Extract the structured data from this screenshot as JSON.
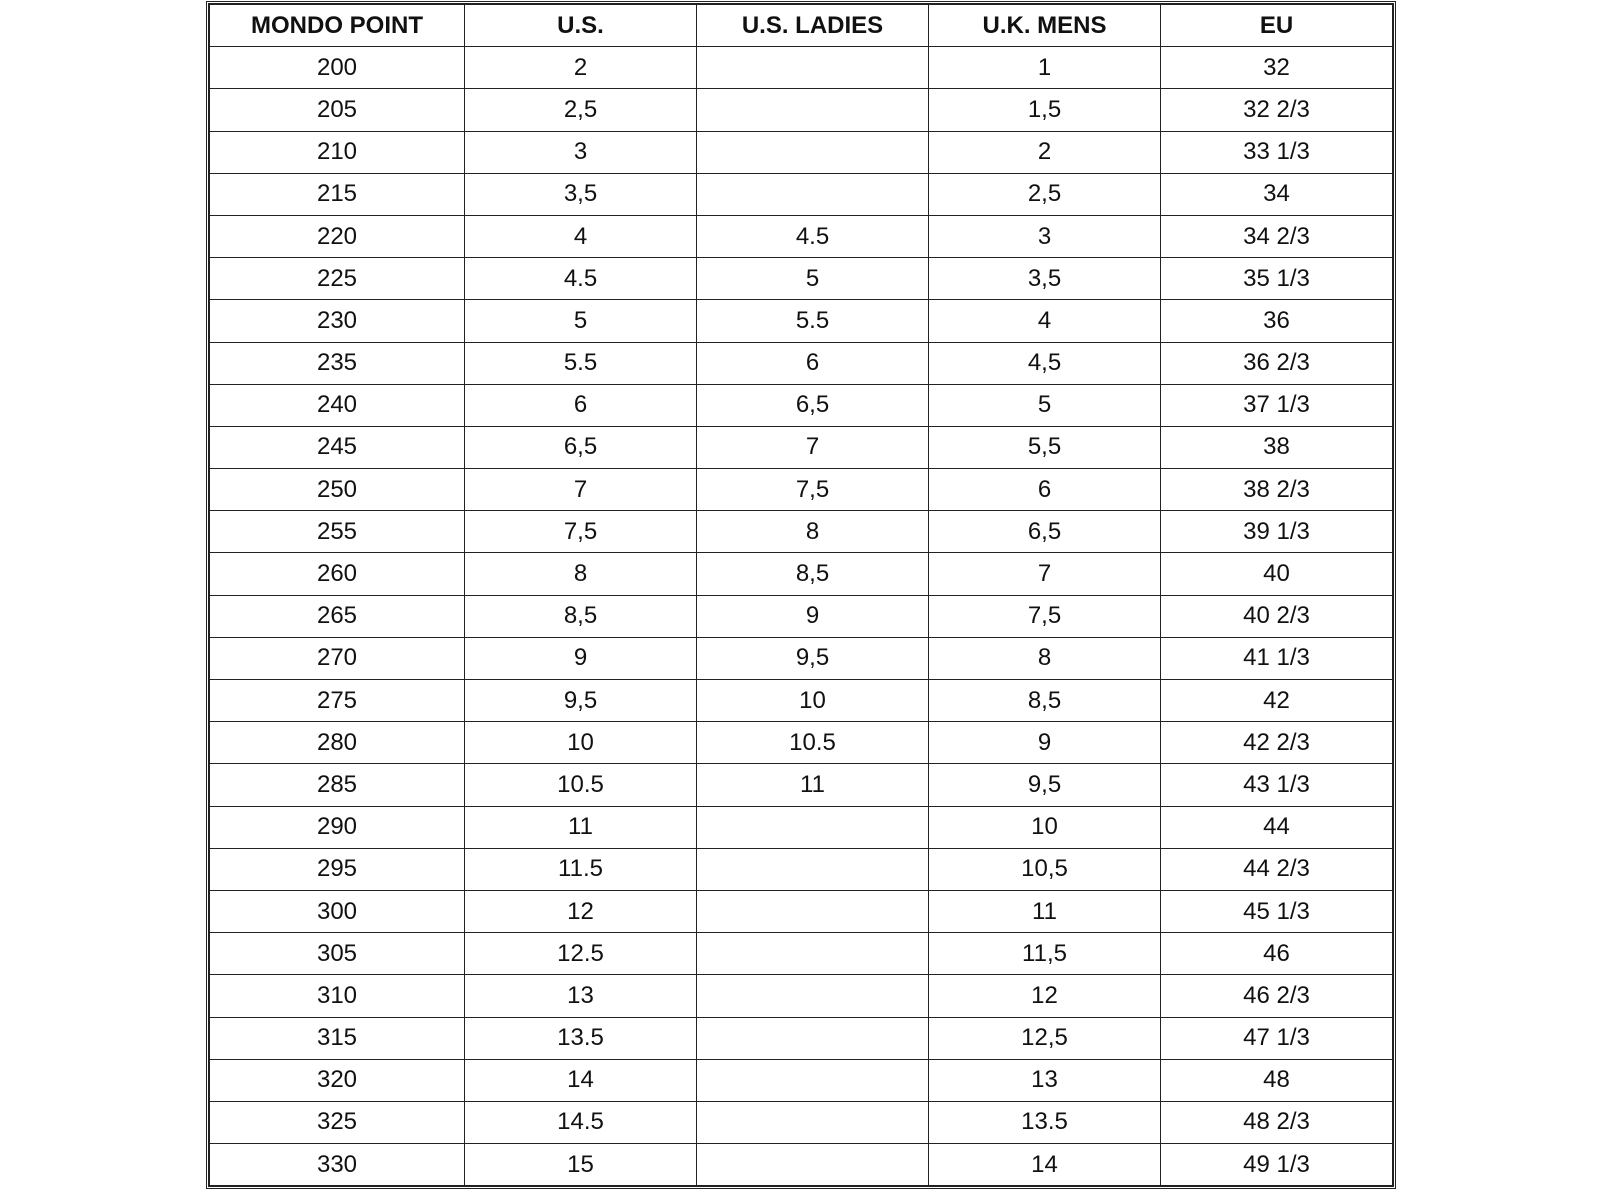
{
  "table": {
    "header": [
      "MONDO POINT",
      "U.S.",
      "U.S. LADIES",
      "U.K. MENS",
      "EU"
    ],
    "rows": [
      [
        "200",
        "2",
        null,
        "1",
        "32"
      ],
      [
        "205",
        "2,5",
        null,
        "1,5",
        "32 2/3"
      ],
      [
        "210",
        "3",
        null,
        "2",
        "33 1/3"
      ],
      [
        "215",
        "3,5",
        null,
        "2,5",
        "34"
      ],
      [
        "220",
        "4",
        "4.5",
        "3",
        "34 2/3"
      ],
      [
        "225",
        "4.5",
        "5",
        "3,5",
        "35 1/3"
      ],
      [
        "230",
        "5",
        "5.5",
        "4",
        "36"
      ],
      [
        "235",
        "5.5",
        "6",
        "4,5",
        "36 2/3"
      ],
      [
        "240",
        "6",
        "6,5",
        "5",
        "37 1/3"
      ],
      [
        "245",
        "6,5",
        "7",
        "5,5",
        "38"
      ],
      [
        "250",
        "7",
        "7,5",
        "6",
        "38 2/3"
      ],
      [
        "255",
        "7,5",
        "8",
        "6,5",
        "39 1/3"
      ],
      [
        "260",
        "8",
        "8,5",
        "7",
        "40"
      ],
      [
        "265",
        "8,5",
        "9",
        "7,5",
        "40 2/3"
      ],
      [
        "270",
        "9",
        "9,5",
        "8",
        "41 1/3"
      ],
      [
        "275",
        "9,5",
        "10",
        "8,5",
        "42"
      ],
      [
        "280",
        "10",
        "10.5",
        "9",
        "42 2/3"
      ],
      [
        "285",
        "10.5",
        "11",
        "9,5",
        "43 1/3"
      ],
      [
        "290",
        "11",
        null,
        "10",
        "44"
      ],
      [
        "295",
        "11.5",
        null,
        "10,5",
        "44 2/3"
      ],
      [
        "300",
        "12",
        null,
        "11",
        "45 1/3"
      ],
      [
        "305",
        "12.5",
        null,
        "11,5",
        "46"
      ],
      [
        "310",
        "13",
        null,
        "12",
        "46 2/3"
      ],
      [
        "315",
        "13.5",
        null,
        "12,5",
        "47 1/3"
      ],
      [
        "320",
        "14",
        null,
        "13",
        "48"
      ],
      [
        "325",
        "14.5",
        null,
        "13.5",
        "48 2/3"
      ],
      [
        "330",
        "15",
        null,
        "14",
        "49 1/3"
      ]
    ]
  }
}
